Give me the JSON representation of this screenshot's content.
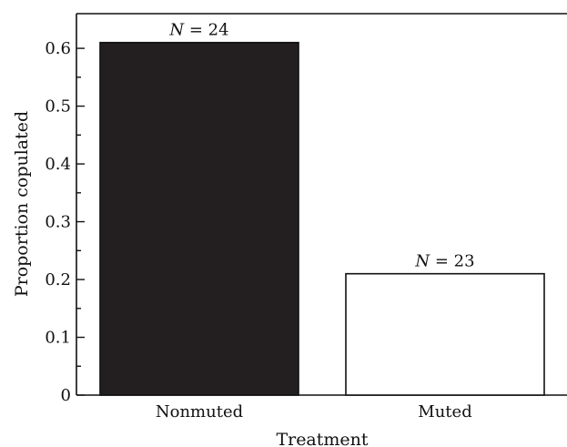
{
  "chart_data": {
    "type": "bar",
    "categories": [
      "Nonmuted",
      "Muted"
    ],
    "values": [
      0.61,
      0.21
    ],
    "bar_labels": [
      "N = 24",
      "N = 23"
    ],
    "bar_fills": [
      "#231f20",
      "#ffffff"
    ],
    "bar_stroke": "#111111",
    "title": "",
    "xlabel": "Treatment",
    "ylabel": "Proportion copulated",
    "ylim": [
      0,
      0.66
    ],
    "yticks": [
      0,
      0.1,
      0.2,
      0.3,
      0.4,
      0.5,
      0.6
    ],
    "ytick_labels": [
      "0",
      "0.1",
      "0.2",
      "0.3",
      "0.4",
      "0.5",
      "0.6"
    ],
    "minor_tick_step": 0.05,
    "grid": false
  }
}
